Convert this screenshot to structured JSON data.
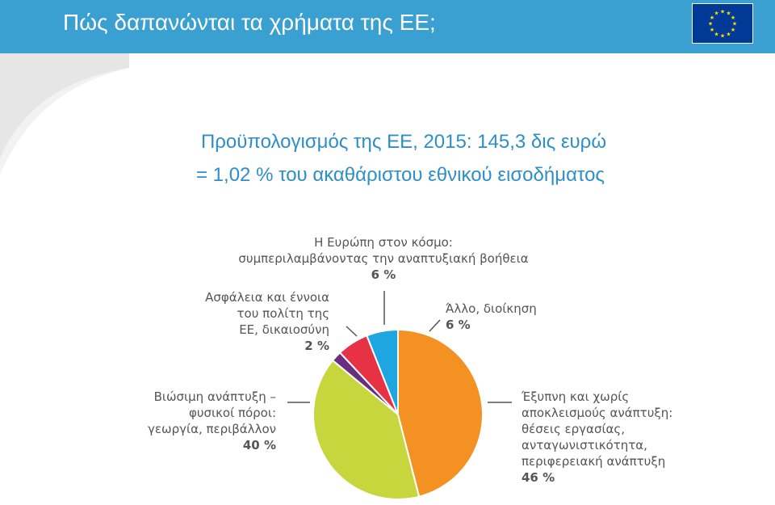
{
  "header": {
    "title": "Πώς δαπανώνται τα χρήματα της ΕΕ;",
    "flag_icon": "eu-flag-icon"
  },
  "subtitle": {
    "line1": "Προϋπολογισμός της ΕΕ, 2015: 145,3 δις ευρώ",
    "line2": "= 1,02 % του ακαθάριστου εθνικού εισοδήματος"
  },
  "colors": {
    "header": "#3a9fd1",
    "subtitle": "#2e8fc8",
    "flag": "#003a96",
    "star": "#ffdd00"
  },
  "chart_data": {
    "type": "pie",
    "title": "",
    "slices": [
      {
        "label": "Έξυπνη και χωρίς αποκλεισμούς ανάπτυξη: θέσεις εργασίας, ανταγωνιστικότητα, περιφερειακή ανάπτυξη",
        "label_lines": [
          "Έξυπνη και χωρίς",
          "αποκλεισμούς ανάπτυξη:",
          "θέσεις εργασίας,",
          "ανταγωνιστικότητα,",
          "περιφερειακή ανάπτυξη"
        ],
        "value": 46,
        "value_label": "46 %",
        "color": "#f39223"
      },
      {
        "label": "Βιώσιμη ανάπτυξη – φυσικοί πόροι: γεωργία, περιβάλλον",
        "label_lines": [
          "Βιώσιμη ανάπτυξη –",
          "φυσικοί πόροι:",
          "γεωργία, περιβάλλον"
        ],
        "value": 40,
        "value_label": "40 %",
        "color": "#c8d63e"
      },
      {
        "label": "Ασφάλεια και έννοια του πολίτη της ΕΕ, δικαιοσύνη",
        "label_lines": [
          "Ασφάλεια και έννοια",
          "του πολίτη της",
          "ΕΕ, δικαιοσύνη"
        ],
        "value": 2,
        "value_label": "2 %",
        "color": "#6b2e7e"
      },
      {
        "label": "Η Ευρώπη στον κόσμο: συμπεριλαμβάνοντας την αναπτυξιακή βοήθεια",
        "label_lines": [
          "Η Ευρώπη στον κόσμο:",
          "συμπεριλαμβάνοντας την αναπτυξιακή βοήθεια"
        ],
        "value": 6,
        "value_label": "6 %",
        "color": "#e63244"
      },
      {
        "label": "Άλλο, διοίκηση",
        "label_lines": [
          "Άλλο, διοίκηση"
        ],
        "value": 6,
        "value_label": "6 %",
        "color": "#1ea6e0"
      }
    ]
  }
}
